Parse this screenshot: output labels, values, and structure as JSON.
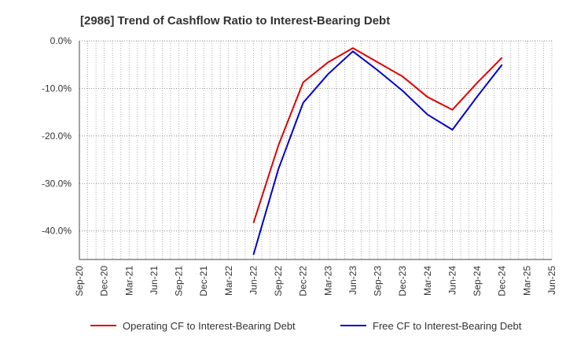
{
  "chart_data": {
    "type": "line",
    "title": "[2986]  Trend of Cashflow Ratio to Interest-Bearing Debt",
    "xlabel": "",
    "ylabel": "",
    "x_ticks": [
      "Sep-20",
      "Dec-20",
      "Mar-21",
      "Jun-21",
      "Sep-21",
      "Dec-21",
      "Mar-22",
      "Jun-22",
      "Sep-22",
      "Dec-22",
      "Mar-23",
      "Jun-23",
      "Sep-23",
      "Dec-23",
      "Mar-24",
      "Jun-24",
      "Sep-24",
      "Dec-24",
      "Mar-25",
      "Jun-25"
    ],
    "y_ticks": [
      "0.0%",
      "-10.0%",
      "-20.0%",
      "-30.0%",
      "-40.0%"
    ],
    "y_tick_values": [
      0,
      -10,
      -20,
      -30,
      -40
    ],
    "ylim": [
      -46,
      0
    ],
    "grid": true,
    "legend_position": "bottom",
    "series": [
      {
        "name": "Operating CF to Interest-Bearing Debt",
        "color": "#e00000",
        "x": [
          "Jun-22",
          "Sep-22",
          "Dec-22",
          "Mar-23",
          "Jun-23",
          "Sep-23",
          "Dec-23",
          "Mar-24",
          "Jun-24",
          "Sep-24",
          "Dec-24"
        ],
        "values": [
          -38.3,
          -22.0,
          -8.7,
          -4.5,
          -1.5,
          -4.5,
          -7.5,
          -11.8,
          -14.5,
          -8.8,
          -3.5
        ]
      },
      {
        "name": "Free CF to Interest-Bearing Debt",
        "color": "#0000cc",
        "x": [
          "Jun-22",
          "Sep-22",
          "Dec-22",
          "Mar-23",
          "Jun-23",
          "Sep-23",
          "Dec-23",
          "Mar-24",
          "Jun-24",
          "Sep-24",
          "Dec-24"
        ],
        "values": [
          -45.0,
          -27.0,
          -13.0,
          -7.0,
          -2.2,
          -6.2,
          -10.5,
          -15.5,
          -18.7,
          -11.7,
          -5.0
        ]
      }
    ]
  }
}
